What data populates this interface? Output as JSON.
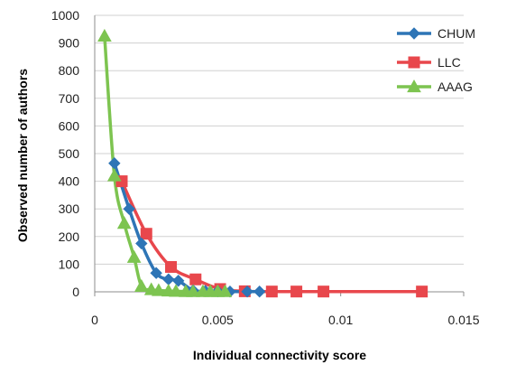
{
  "chart_data": {
    "type": "line",
    "title": "",
    "xlabel": "Individual connectivity score",
    "ylabel": "Observed number of authors",
    "xlim": [
      0,
      0.015
    ],
    "ylim": [
      0,
      1000
    ],
    "x_ticks": [
      0,
      0.005,
      0.01,
      0.015
    ],
    "x_tick_labels": [
      "0",
      "0.005",
      "0.01",
      "0.015"
    ],
    "y_ticks": [
      0,
      100,
      200,
      300,
      400,
      500,
      600,
      700,
      800,
      900,
      1000
    ],
    "y_tick_labels": [
      "0",
      "100",
      "200",
      "300",
      "400",
      "500",
      "600",
      "700",
      "800",
      "900",
      "1000"
    ],
    "grid": "horizontal",
    "legend_position": "top-right",
    "series": [
      {
        "name": "CHUM",
        "color": "#2E75B6",
        "marker": "diamond",
        "x": [
          0.0008,
          0.0014,
          0.0019,
          0.0025,
          0.003,
          0.0034,
          0.004,
          0.0045,
          0.005,
          0.0055,
          0.0062,
          0.0067
        ],
        "y": [
          465,
          300,
          175,
          68,
          45,
          40,
          5,
          3,
          2,
          1,
          1,
          1
        ]
      },
      {
        "name": "LLC",
        "color": "#E8474C",
        "marker": "square",
        "x": [
          0.0011,
          0.0021,
          0.0031,
          0.0041,
          0.0051,
          0.0061,
          0.0072,
          0.0082,
          0.0093,
          0.0133
        ],
        "y": [
          400,
          210,
          90,
          45,
          10,
          2,
          1,
          1,
          1,
          1
        ]
      },
      {
        "name": "AAAG",
        "color": "#7DC450",
        "marker": "triangle",
        "x": [
          0.0004,
          0.0008,
          0.0012,
          0.0016,
          0.0019,
          0.0023,
          0.0026,
          0.003,
          0.0033,
          0.0037,
          0.004,
          0.0044,
          0.0047,
          0.005,
          0.0053
        ],
        "y": [
          925,
          420,
          248,
          125,
          20,
          8,
          5,
          3,
          2,
          1,
          1,
          1,
          1,
          1,
          1
        ]
      }
    ]
  }
}
